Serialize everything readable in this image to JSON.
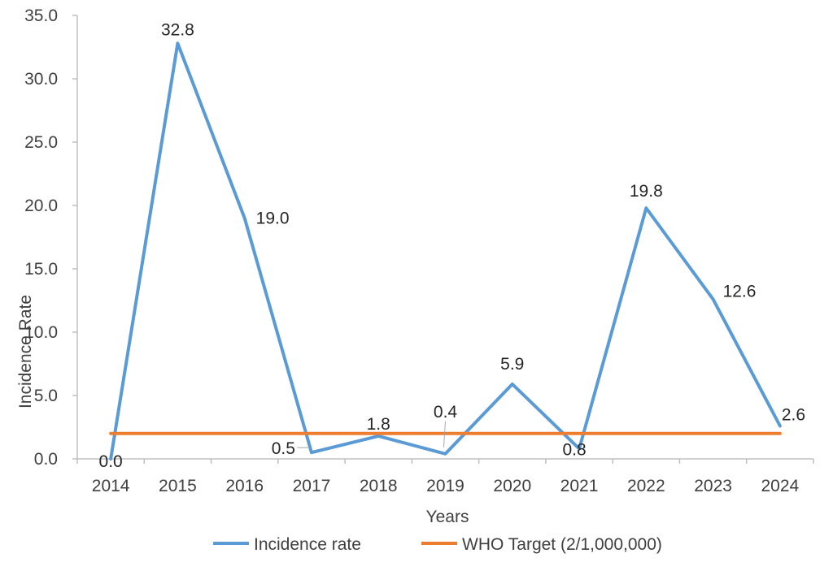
{
  "chart_data": {
    "type": "line",
    "categories": [
      "2014",
      "2015",
      "2016",
      "2017",
      "2018",
      "2019",
      "2020",
      "2021",
      "2022",
      "2023",
      "2024"
    ],
    "series": [
      {
        "name": "Incidence rate",
        "values": [
          0.0,
          32.8,
          19.0,
          0.5,
          1.8,
          0.4,
          5.9,
          0.8,
          19.8,
          12.6,
          2.6
        ],
        "labels": [
          "0.0",
          "32.8",
          "19.0",
          "0.5",
          "1.8",
          "0.4",
          "5.9",
          "0.8",
          "19.8",
          "12.6",
          "2.6"
        ],
        "color": "#5B9BD5"
      },
      {
        "name": "WHO Target (2/1,000,000)",
        "values": [
          2,
          2,
          2,
          2,
          2,
          2,
          2,
          2,
          2,
          2,
          2
        ],
        "color": "#ED7D31"
      }
    ],
    "yticks": [
      "0.0",
      "5.0",
      "10.0",
      "15.0",
      "20.0",
      "25.0",
      "30.0",
      "35.0"
    ],
    "ylim": [
      0,
      35
    ],
    "xlabel": "Years",
    "ylabel": "Incidence Rate",
    "grid": false,
    "legend_position": "bottom"
  }
}
